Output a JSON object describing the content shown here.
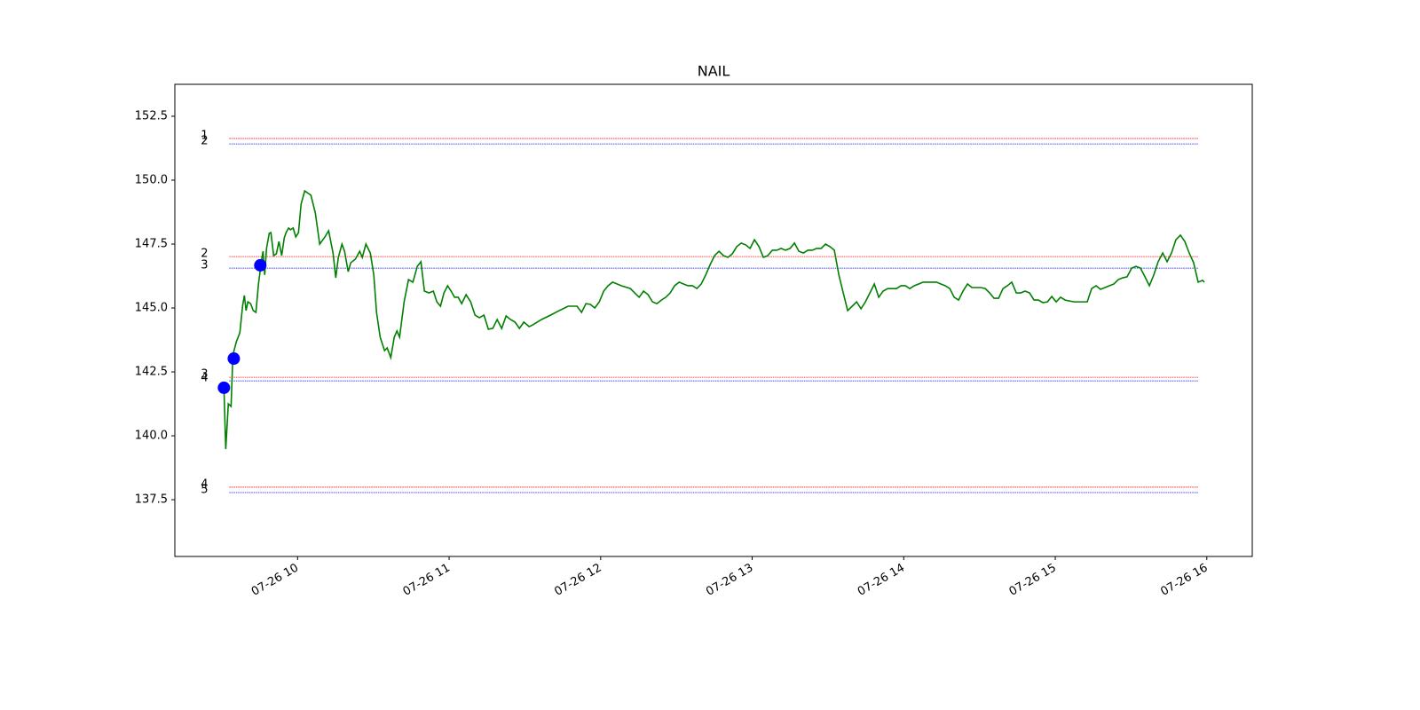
{
  "chart_data": {
    "type": "line",
    "title": "NAIL",
    "xlim": [
      9.19,
      16.3
    ],
    "ylim": [
      135.28,
      153.75
    ],
    "xticks": [
      {
        "value": 10,
        "label": "07-26 10"
      },
      {
        "value": 11,
        "label": "07-26 11"
      },
      {
        "value": 12,
        "label": "07-26 12"
      },
      {
        "value": 13,
        "label": "07-26 13"
      },
      {
        "value": 14,
        "label": "07-26 14"
      },
      {
        "value": 15,
        "label": "07-26 15"
      },
      {
        "value": 16,
        "label": "07-26 16"
      }
    ],
    "yticks": [
      137.5,
      {
        "value": 140,
        "label": "140.0"
      },
      142.5,
      {
        "value": 145,
        "label": "145.0"
      },
      147.5,
      {
        "value": 150,
        "label": "150.0"
      },
      152.5
    ],
    "series": [
      {
        "color": "green",
        "x": [
          9.514,
          9.526,
          9.543,
          9.561,
          9.573,
          9.596,
          9.619,
          9.637,
          9.649,
          9.66,
          9.672,
          9.69,
          9.707,
          9.725,
          9.742,
          9.76,
          9.772,
          9.783,
          9.795,
          9.813,
          9.824,
          9.842,
          9.86,
          9.877,
          9.895,
          9.912,
          9.924,
          9.941,
          9.953,
          9.971,
          9.988,
          10.006,
          10.023,
          10.047,
          10.064,
          10.088,
          10.117,
          10.146,
          10.176,
          10.205,
          10.234,
          10.252,
          10.269,
          10.293,
          10.31,
          10.334,
          10.351,
          10.381,
          10.41,
          10.427,
          10.451,
          10.48,
          10.503,
          10.521,
          10.545,
          10.574,
          10.591,
          10.615,
          10.638,
          10.656,
          10.673,
          10.703,
          10.732,
          10.761,
          10.79,
          10.814,
          10.837,
          10.867,
          10.896,
          10.919,
          10.943,
          10.966,
          10.99,
          11.013,
          11.036,
          11.06,
          11.083,
          11.112,
          11.142,
          11.171,
          11.2,
          11.23,
          11.259,
          11.288,
          11.317,
          11.347,
          11.376,
          11.405,
          11.435,
          11.464,
          11.493,
          11.528,
          11.552,
          11.61,
          11.669,
          11.727,
          11.786,
          11.844,
          11.874,
          11.903,
          11.932,
          11.961,
          11.991,
          12.02,
          12.049,
          12.079,
          12.137,
          12.196,
          12.225,
          12.254,
          12.283,
          12.313,
          12.342,
          12.371,
          12.401,
          12.43,
          12.459,
          12.488,
          12.518,
          12.547,
          12.576,
          12.606,
          12.635,
          12.664,
          12.693,
          12.723,
          12.752,
          12.781,
          12.81,
          12.84,
          12.869,
          12.898,
          12.928,
          12.957,
          12.986,
          13.015,
          13.045,
          13.074,
          13.103,
          13.133,
          13.162,
          13.191,
          13.22,
          13.25,
          13.279,
          13.308,
          13.338,
          13.367,
          13.396,
          13.425,
          13.455,
          13.484,
          13.513,
          13.542,
          13.572,
          13.601,
          13.63,
          13.66,
          13.689,
          13.718,
          13.747,
          13.777,
          13.806,
          13.835,
          13.864,
          13.894,
          13.923,
          13.952,
          13.982,
          14.011,
          14.04,
          14.069,
          14.099,
          14.128,
          14.157,
          14.186,
          14.216,
          14.245,
          14.274,
          14.304,
          14.333,
          14.362,
          14.391,
          14.421,
          14.45,
          14.479,
          14.508,
          14.538,
          14.567,
          14.596,
          14.626,
          14.655,
          14.684,
          14.713,
          14.743,
          14.772,
          14.801,
          14.83,
          14.86,
          14.889,
          14.918,
          14.948,
          14.977,
          15.006,
          15.035,
          15.065,
          15.123,
          15.182,
          15.211,
          15.24,
          15.27,
          15.299,
          15.328,
          15.357,
          15.387,
          15.416,
          15.445,
          15.474,
          15.504,
          15.533,
          15.562,
          15.592,
          15.621,
          15.65,
          15.679,
          15.709,
          15.738,
          15.767,
          15.796,
          15.826,
          15.855,
          15.884,
          15.913,
          15.943,
          15.972,
          15.984
        ],
        "values": [
          141.88,
          139.48,
          141.25,
          141.15,
          143.16,
          143.68,
          144.03,
          145.07,
          145.49,
          144.9,
          145.24,
          145.17,
          144.9,
          144.83,
          145.94,
          146.77,
          147.22,
          146.29,
          147.33,
          147.92,
          147.95,
          147.05,
          147.12,
          147.6,
          147.05,
          147.74,
          147.95,
          148.13,
          148.06,
          148.13,
          147.78,
          147.95,
          149.06,
          149.58,
          149.51,
          149.41,
          148.72,
          147.5,
          147.74,
          148.02,
          147.15,
          146.18,
          146.98,
          147.5,
          147.22,
          146.42,
          146.77,
          146.91,
          147.22,
          146.98,
          147.5,
          147.15,
          146.29,
          144.83,
          143.86,
          143.33,
          143.44,
          143.06,
          143.86,
          144.1,
          143.86,
          145.24,
          146.11,
          146.01,
          146.63,
          146.81,
          145.66,
          145.59,
          145.66,
          145.24,
          145.07,
          145.59,
          145.87,
          145.66,
          145.42,
          145.42,
          145.17,
          145.52,
          145.24,
          144.72,
          144.62,
          144.72,
          144.17,
          144.2,
          144.55,
          144.2,
          144.69,
          144.55,
          144.45,
          144.2,
          144.45,
          144.27,
          144.34,
          144.55,
          144.72,
          144.9,
          145.07,
          145.07,
          144.83,
          145.17,
          145.14,
          145.0,
          145.24,
          145.66,
          145.87,
          146.01,
          145.87,
          145.76,
          145.59,
          145.42,
          145.66,
          145.52,
          145.24,
          145.17,
          145.31,
          145.42,
          145.59,
          145.87,
          146.01,
          145.94,
          145.87,
          145.87,
          145.76,
          145.94,
          146.29,
          146.7,
          147.05,
          147.22,
          147.05,
          146.98,
          147.12,
          147.4,
          147.54,
          147.47,
          147.33,
          147.67,
          147.4,
          146.98,
          147.05,
          147.26,
          147.26,
          147.33,
          147.26,
          147.33,
          147.54,
          147.22,
          147.15,
          147.26,
          147.26,
          147.33,
          147.33,
          147.5,
          147.4,
          147.26,
          146.29,
          145.59,
          144.9,
          145.07,
          145.24,
          144.97,
          145.24,
          145.59,
          145.94,
          145.42,
          145.66,
          145.76,
          145.76,
          145.76,
          145.87,
          145.87,
          145.76,
          145.87,
          145.94,
          146.01,
          146.01,
          146.01,
          146.01,
          145.94,
          145.87,
          145.76,
          145.42,
          145.31,
          145.66,
          145.94,
          145.8,
          145.8,
          145.8,
          145.76,
          145.59,
          145.38,
          145.38,
          145.76,
          145.87,
          146.01,
          145.59,
          145.59,
          145.66,
          145.59,
          145.31,
          145.31,
          145.21,
          145.24,
          145.45,
          145.24,
          145.42,
          145.31,
          145.24,
          145.24,
          145.24,
          145.76,
          145.87,
          145.73,
          145.8,
          145.87,
          145.94,
          146.11,
          146.18,
          146.22,
          146.56,
          146.63,
          146.56,
          146.22,
          145.87,
          146.29,
          146.81,
          147.15,
          146.81,
          147.15,
          147.67,
          147.85,
          147.6,
          147.15,
          146.77,
          146.01,
          146.08,
          146.01
        ]
      },
      {
        "color": "blue",
        "marker": true,
        "x": [
          9.514,
          9.579,
          9.754
        ],
        "values": [
          141.88,
          143.02,
          146.67
        ]
      }
    ],
    "level_x": [
      9.549,
      15.943
    ],
    "levels": [
      {
        "label": "1",
        "value": 151.63,
        "color": "red"
      },
      {
        "label": "2",
        "value": 151.42,
        "color": "blue"
      },
      {
        "label": "2",
        "value": 147.01,
        "color": "red"
      },
      {
        "label": "3",
        "value": 146.56,
        "color": "blue"
      },
      {
        "label": "3",
        "value": 142.29,
        "color": "red"
      },
      {
        "label": "4",
        "value": 142.15,
        "color": "blue"
      },
      {
        "label": "4",
        "value": 137.99,
        "color": "red"
      },
      {
        "label": "5",
        "value": 137.78,
        "color": "blue"
      }
    ]
  }
}
